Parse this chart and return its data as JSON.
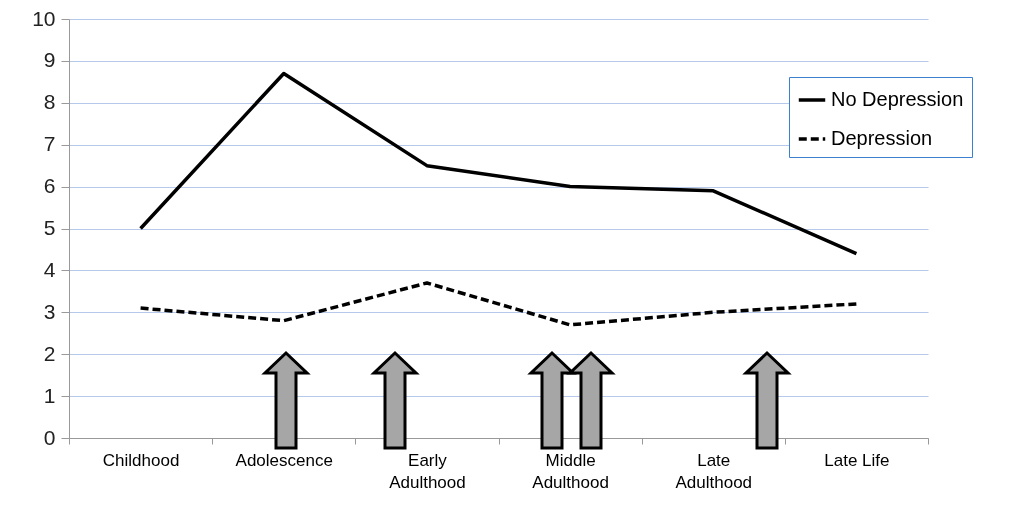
{
  "chart_data": {
    "type": "line",
    "categories": [
      "Childhood",
      "Adolescence",
      "Early\nAdulthood",
      "Middle\nAdulthood",
      "Late\nAdulthood",
      "Late Life"
    ],
    "series": [
      {
        "name": "No Depression",
        "color": "#000000",
        "line_style": "solid",
        "values": [
          5.0,
          8.7,
          6.5,
          6.0,
          5.9,
          4.4
        ]
      },
      {
        "name": "Depression",
        "color": "#000000",
        "line_style": "dashed",
        "values": [
          3.1,
          2.8,
          3.7,
          2.7,
          3.0,
          3.2
        ]
      }
    ],
    "ylim": [
      0,
      10
    ],
    "yticks": [
      0,
      1,
      2,
      3,
      4,
      5,
      6,
      7,
      8,
      9,
      10
    ],
    "grid": "y",
    "legend": "top right"
  }
}
